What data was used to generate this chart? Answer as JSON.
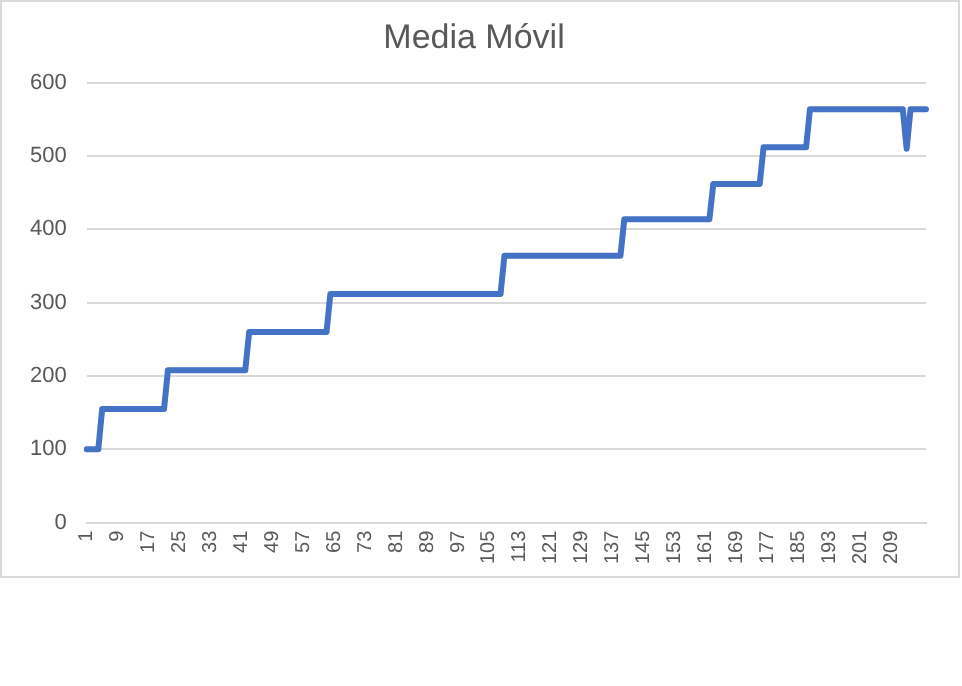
{
  "chart_data": {
    "type": "line",
    "title": "Media Móvil",
    "categories": [
      "1",
      null,
      null,
      null,
      null,
      null,
      null,
      null,
      "9",
      null,
      null,
      null,
      null,
      null,
      null,
      null,
      "17",
      null,
      null,
      null,
      null,
      null,
      null,
      null,
      "25",
      null,
      null,
      null,
      null,
      null,
      null,
      null,
      "33",
      null,
      null,
      null,
      null,
      null,
      null,
      null,
      "41",
      null,
      null,
      null,
      null,
      null,
      null,
      null,
      "49",
      null,
      null,
      null,
      null,
      null,
      null,
      null,
      "57",
      null,
      null,
      null,
      null,
      null,
      null,
      null,
      "65",
      null,
      null,
      null,
      null,
      null,
      null,
      null,
      "73",
      null,
      null,
      null,
      null,
      null,
      null,
      null,
      "81",
      null,
      null,
      null,
      null,
      null,
      null,
      null,
      "89",
      null,
      null,
      null,
      null,
      null,
      null,
      null,
      "97",
      null,
      null,
      null,
      null,
      null,
      null,
      null,
      "105",
      null,
      null,
      null,
      null,
      null,
      null,
      null,
      "113",
      null,
      null,
      null,
      null,
      null,
      null,
      null,
      "121",
      null,
      null,
      null,
      null,
      null,
      null,
      null,
      "129",
      null,
      null,
      null,
      null,
      null,
      null,
      null,
      "137",
      null,
      null,
      null,
      null,
      null,
      null,
      null,
      "145",
      null,
      null,
      null,
      null,
      null,
      null,
      null,
      "153",
      null,
      null,
      null,
      null,
      null,
      null,
      null,
      "161",
      null,
      null,
      null,
      null,
      null,
      null,
      null,
      "169",
      null,
      null,
      null,
      null,
      null,
      null,
      null,
      "177",
      null,
      null,
      null,
      null,
      null,
      null,
      null,
      "185",
      null,
      null,
      null,
      null,
      null,
      null,
      null,
      "193",
      null,
      null,
      null,
      null,
      null,
      null,
      null,
      "201",
      null,
      null,
      null,
      null,
      null,
      null,
      null,
      "209",
      null,
      null,
      null,
      null,
      null,
      null,
      null,
      null,
      null
    ],
    "series": [
      {
        "color": "#4472c4",
        "values": [
          100,
          100,
          100,
          100,
          155,
          155,
          155,
          155,
          155,
          155,
          155,
          155,
          155,
          155,
          155,
          155,
          155,
          155,
          155,
          155,
          155,
          208,
          208,
          208,
          208,
          208,
          208,
          208,
          208,
          208,
          208,
          208,
          208,
          208,
          208,
          208,
          208,
          208,
          208,
          208,
          208,
          208,
          260,
          260,
          260,
          260,
          260,
          260,
          260,
          260,
          260,
          260,
          260,
          260,
          260,
          260,
          260,
          260,
          260,
          260,
          260,
          260,
          260,
          312,
          312,
          312,
          312,
          312,
          312,
          312,
          312,
          312,
          312,
          312,
          312,
          312,
          312,
          312,
          312,
          312,
          312,
          312,
          312,
          312,
          312,
          312,
          312,
          312,
          312,
          312,
          312,
          312,
          312,
          312,
          312,
          312,
          312,
          312,
          312,
          312,
          312,
          312,
          312,
          312,
          312,
          312,
          312,
          312,
          364,
          364,
          364,
          364,
          364,
          364,
          364,
          364,
          364,
          364,
          364,
          364,
          364,
          364,
          364,
          364,
          364,
          364,
          364,
          364,
          364,
          364,
          364,
          364,
          364,
          364,
          364,
          364,
          364,
          364,
          364,
          414,
          414,
          414,
          414,
          414,
          414,
          414,
          414,
          414,
          414,
          414,
          414,
          414,
          414,
          414,
          414,
          414,
          414,
          414,
          414,
          414,
          414,
          414,
          462,
          462,
          462,
          462,
          462,
          462,
          462,
          462,
          462,
          462,
          462,
          462,
          462,
          512,
          512,
          512,
          512,
          512,
          512,
          512,
          512,
          512,
          512,
          512,
          512,
          564,
          564,
          564,
          564,
          564,
          564,
          564,
          564,
          564,
          564,
          564,
          564,
          564,
          564,
          564,
          564,
          564,
          564,
          564,
          564,
          564,
          564,
          564,
          564,
          564,
          510,
          564,
          564,
          564,
          564,
          564
        ]
      }
    ],
    "ylim": [
      0,
      600
    ],
    "yticks": [
      0,
      100,
      200,
      300,
      400,
      500,
      600
    ],
    "grid": "y",
    "marker": "none",
    "line_style": "solid"
  }
}
